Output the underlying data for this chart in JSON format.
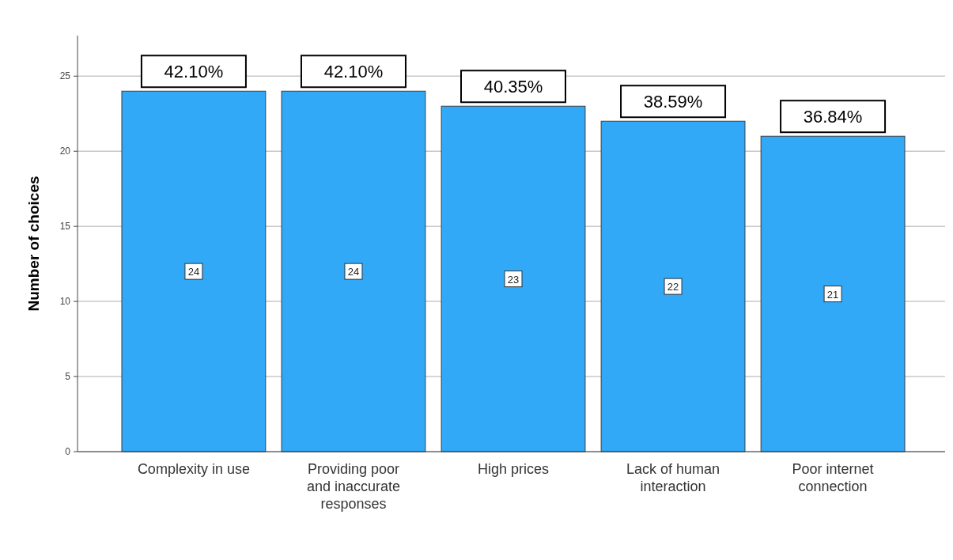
{
  "chart_data": {
    "type": "bar",
    "ylabel": "Number of choices",
    "categories": [
      "Complexity in use",
      "Providing poor and inaccurate responses",
      "High prices",
      "Lack of human interaction",
      "Poor internet connection"
    ],
    "values": [
      24,
      24,
      23,
      22,
      21
    ],
    "color": "#31a9f7",
    "ylim": [
      0,
      27.7
    ],
    "yticks": [
      0,
      5,
      10,
      15,
      20,
      25
    ],
    "grid": "y",
    "data_labels": true,
    "annotations": [
      {
        "text": "42.10%",
        "x": "Complexity in use",
        "y": 24
      },
      {
        "text": "42.10%",
        "x": "Providing poor and inaccurate responses",
        "y": 24
      },
      {
        "text": "40.35%",
        "x": "High prices",
        "y": 23
      },
      {
        "text": "38.59%",
        "x": "Lack of human interaction",
        "y": 22
      },
      {
        "text": "36.84%",
        "x": "Poor internet connection",
        "y": 21
      }
    ]
  }
}
